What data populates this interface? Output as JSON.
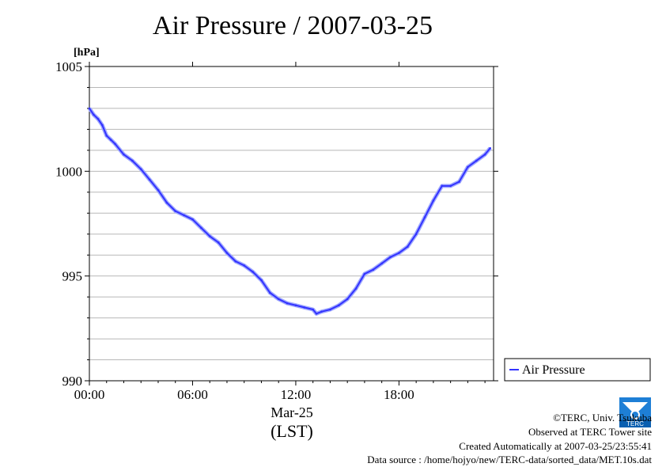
{
  "title": "Air Pressure / 2007-03-25",
  "chart_data": {
    "type": "line",
    "ylabel": "[hPa]",
    "ylim": [
      990,
      1005
    ],
    "y_ticks": [
      "990",
      "995",
      "1000",
      "1005"
    ],
    "xlim": [
      0,
      23.5
    ],
    "x_ticks": [
      "00:00",
      "06:00",
      "12:00",
      "18:00"
    ],
    "x_tick_values": [
      0,
      6,
      12,
      18
    ],
    "date_label": "Mar-25",
    "xlabel": "(LST)",
    "grid": true,
    "legend_position": "right",
    "series": [
      {
        "name": "Air Pressure",
        "color": "#3333ff",
        "x": [
          0,
          0.25,
          0.5,
          0.75,
          1,
          1.25,
          1.5,
          2,
          2.5,
          3,
          3.5,
          4,
          4.5,
          5,
          5.5,
          6,
          6.5,
          7,
          7.5,
          8,
          8.5,
          9,
          9.5,
          10,
          10.5,
          11,
          11.5,
          12,
          12.5,
          13,
          13.2,
          13.5,
          14,
          14.5,
          15,
          15.5,
          16,
          16.5,
          17,
          17.5,
          18,
          18.5,
          19,
          19.5,
          20,
          20.5,
          21,
          21.5,
          22,
          22.5,
          23,
          23.3
        ],
        "y": [
          1003,
          1002.7,
          1002.5,
          1002.2,
          1001.7,
          1001.5,
          1001.3,
          1000.8,
          1000.5,
          1000.1,
          999.6,
          999.1,
          998.5,
          998.1,
          997.9,
          997.7,
          997.3,
          996.9,
          996.6,
          996.1,
          995.7,
          995.5,
          995.2,
          994.8,
          994.2,
          993.9,
          993.7,
          993.6,
          993.5,
          993.4,
          993.2,
          993.3,
          993.4,
          993.6,
          993.9,
          994.4,
          995.1,
          995.3,
          995.6,
          995.9,
          996.1,
          996.4,
          997,
          997.8,
          998.6,
          999.3,
          999.3,
          999.5,
          1000.2,
          1000.5,
          1000.8,
          1001.1
        ]
      }
    ]
  },
  "legend": {
    "label": "Air Pressure"
  },
  "footer": {
    "copyright": "©TERC, Univ. Tsukuba",
    "observed": "Observed at TERC Tower site",
    "created": "Created Automatically at 2007-03-25/23:55:41",
    "source": "Data source : /home/hojyo/new/TERC-data/sorted_data/MET.10s.dat",
    "logo_text": "TERC"
  }
}
